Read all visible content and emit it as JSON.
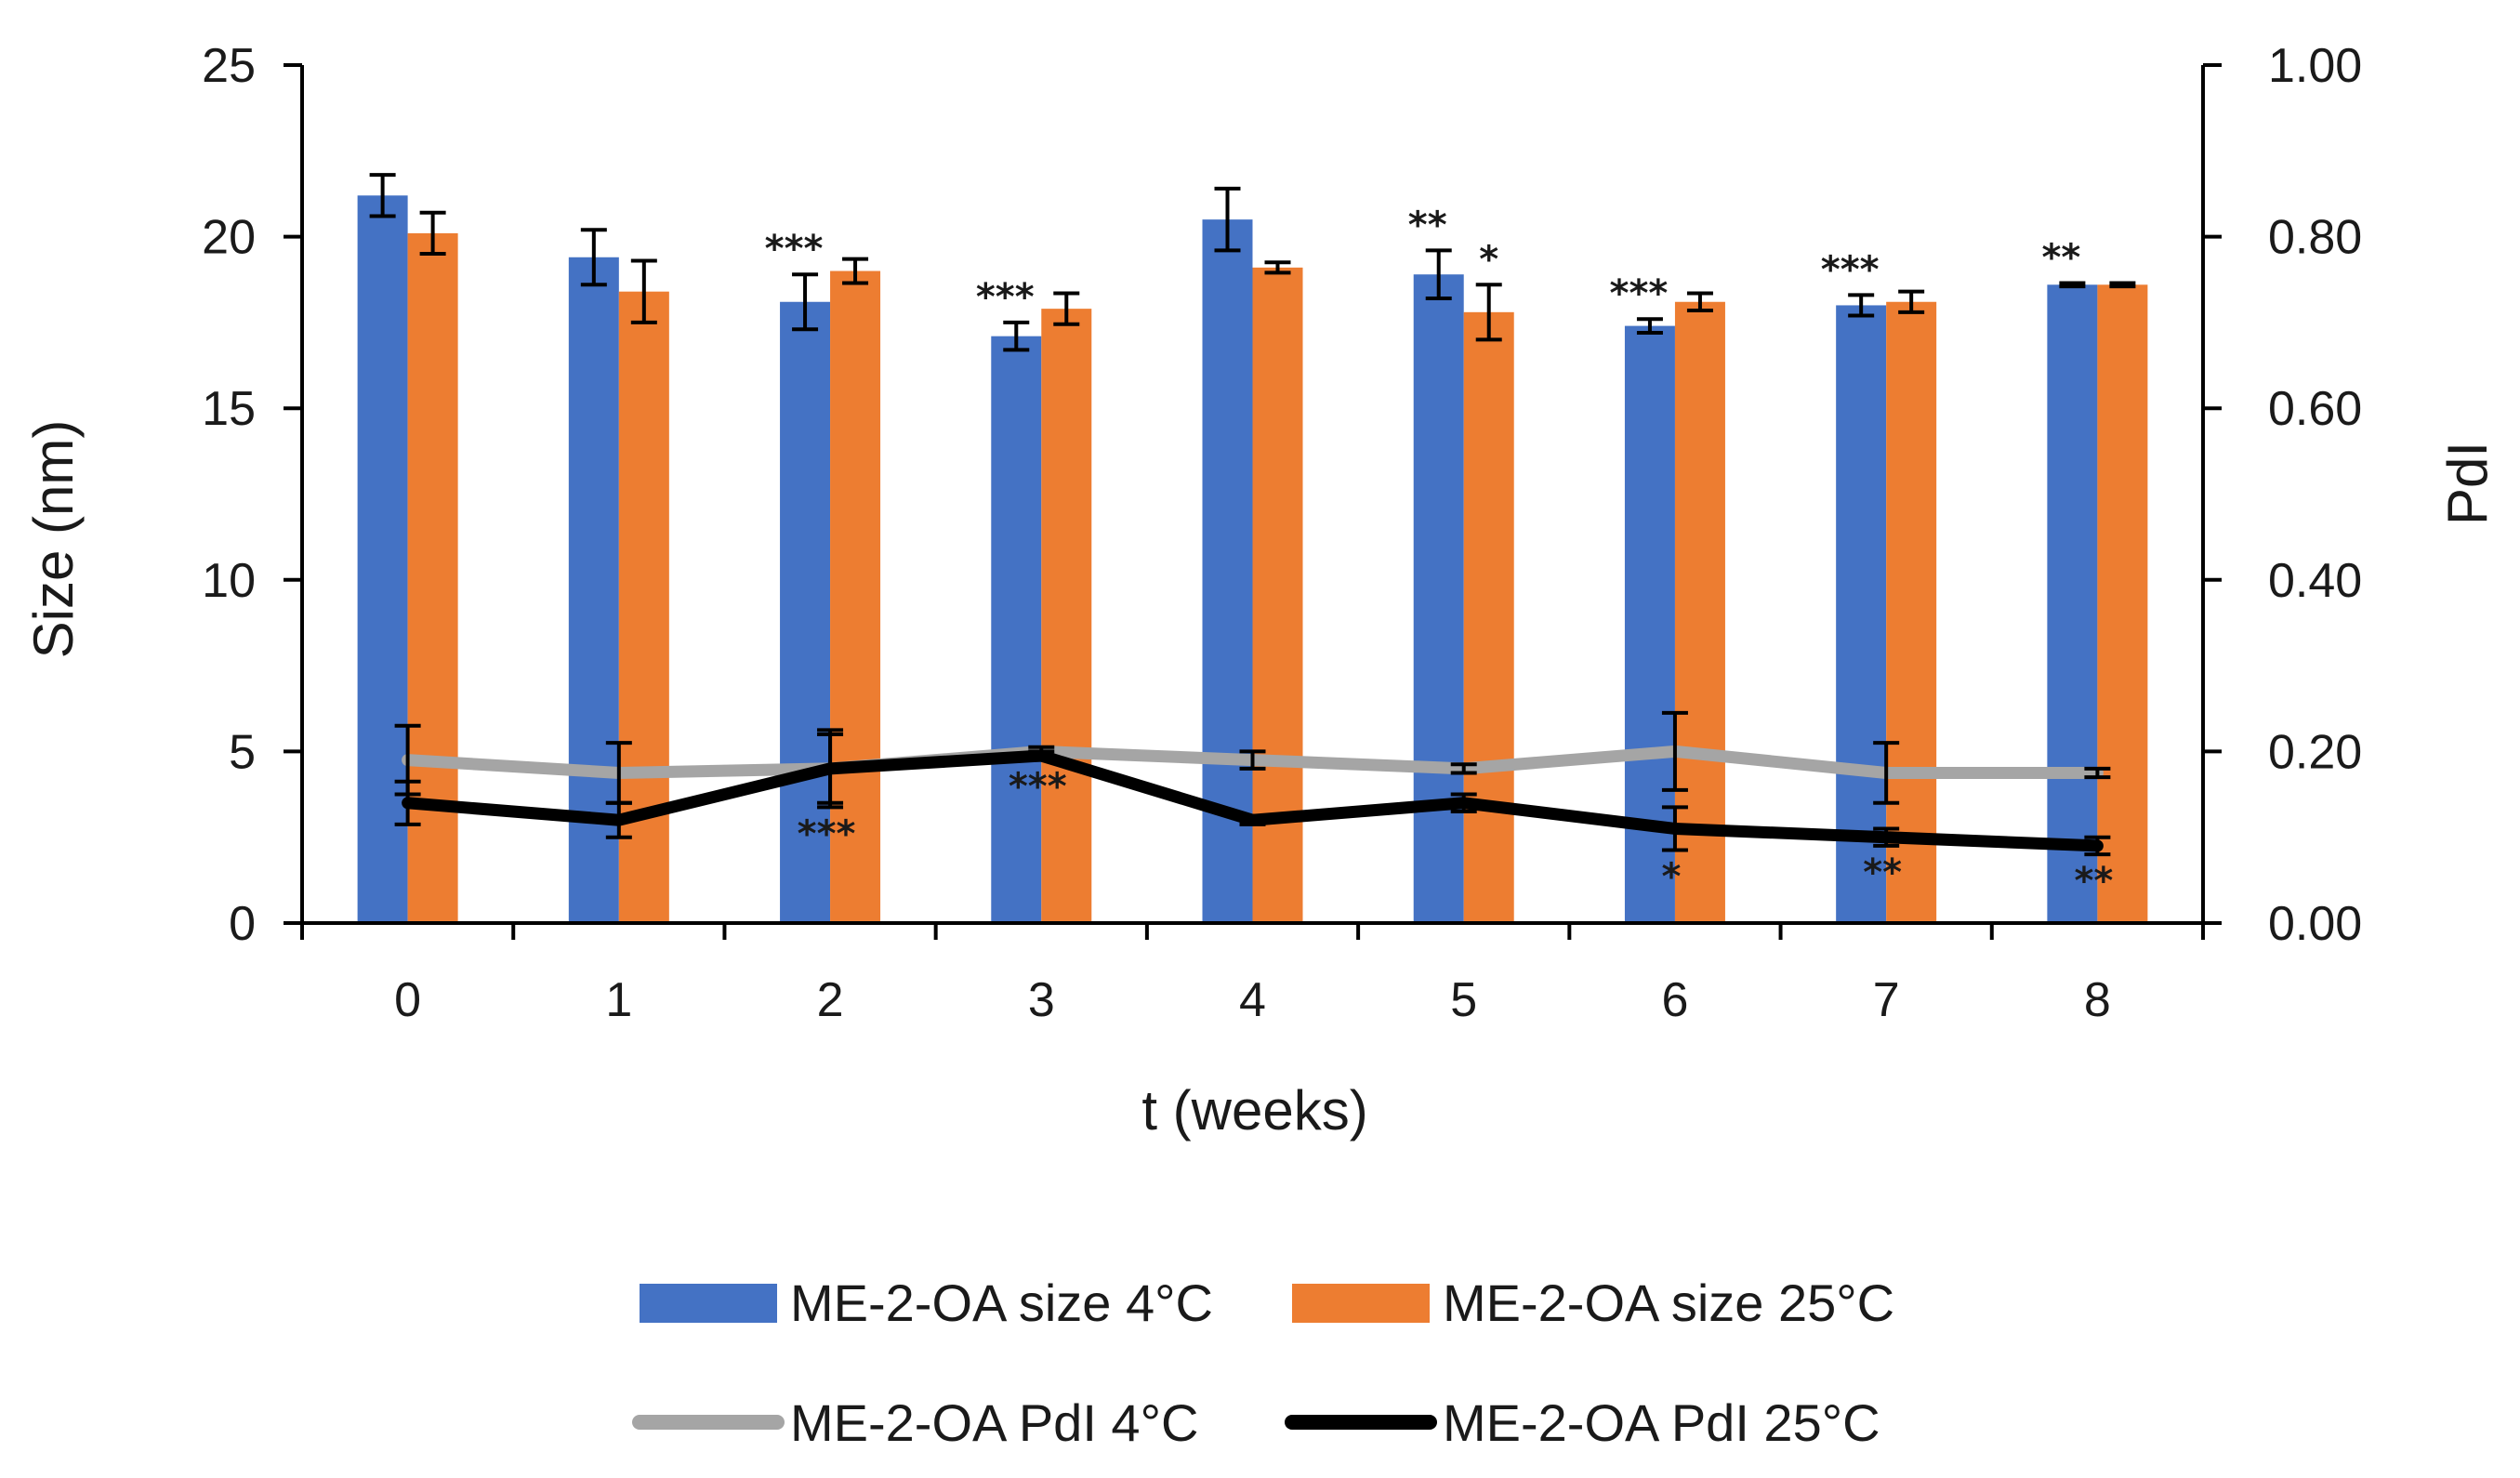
{
  "chart_data": {
    "type": "bar",
    "xlabel": "t (weeks)",
    "ylabel": "Size (nm)",
    "y2label": "PdI",
    "categories": [
      "0",
      "1",
      "2",
      "3",
      "4",
      "5",
      "6",
      "7",
      "8"
    ],
    "ylim": [
      0,
      25
    ],
    "y2lim": [
      0,
      1
    ],
    "yticks": [
      "0",
      "5",
      "10",
      "15",
      "20",
      "25"
    ],
    "y2ticks": [
      "0.00",
      "0.20",
      "0.40",
      "0.60",
      "0.80",
      "1.00"
    ],
    "legend_position": "bottom",
    "bar_series": [
      {
        "name": "ME-2-OA size 4°C",
        "color": "#4472C4",
        "values": [
          21.2,
          19.4,
          18.1,
          17.1,
          20.5,
          18.9,
          17.4,
          18.0,
          18.6
        ],
        "errors": [
          0.6,
          0.8,
          0.8,
          0.4,
          0.9,
          0.7,
          0.2,
          0.3,
          0.05
        ],
        "significance": [
          "",
          "",
          "***",
          "***",
          "",
          "**",
          "***",
          "***",
          "**"
        ]
      },
      {
        "name": "ME-2-OA size 25°C",
        "color": "#ED7D31",
        "values": [
          20.1,
          18.4,
          19.0,
          17.9,
          19.1,
          17.8,
          18.1,
          18.1,
          18.6
        ],
        "errors": [
          0.6,
          0.9,
          0.35,
          0.45,
          0.15,
          0.8,
          0.25,
          0.3,
          0.05
        ],
        "significance": [
          "",
          "",
          "",
          "",
          "",
          "*",
          "",
          "",
          ""
        ]
      }
    ],
    "line_series": [
      {
        "name": "ME-2-OA PdI 4°C",
        "color": "#A5A5A5",
        "axis": "right",
        "values": [
          0.19,
          0.175,
          0.18,
          0.2,
          0.19,
          0.18,
          0.2,
          0.175,
          0.175
        ],
        "errors": [
          0.04,
          0.035,
          0.04,
          0.005,
          0.01,
          0.005,
          0.045,
          0.035,
          0.005
        ],
        "significance": [
          "",
          "",
          "",
          "",
          "",
          "",
          "",
          "",
          ""
        ]
      },
      {
        "name": "ME-2-OA PdI 25°C",
        "color": "#000000",
        "axis": "right",
        "values": [
          0.14,
          0.12,
          0.18,
          0.195,
          0.12,
          0.14,
          0.11,
          0.1,
          0.09
        ],
        "errors": [
          0.025,
          0.02,
          0.045,
          0.005,
          0.005,
          0.01,
          0.025,
          0.01,
          0.01
        ],
        "significance": [
          "",
          "",
          "***",
          "***",
          "",
          "",
          "*",
          "**",
          "**"
        ]
      }
    ]
  }
}
